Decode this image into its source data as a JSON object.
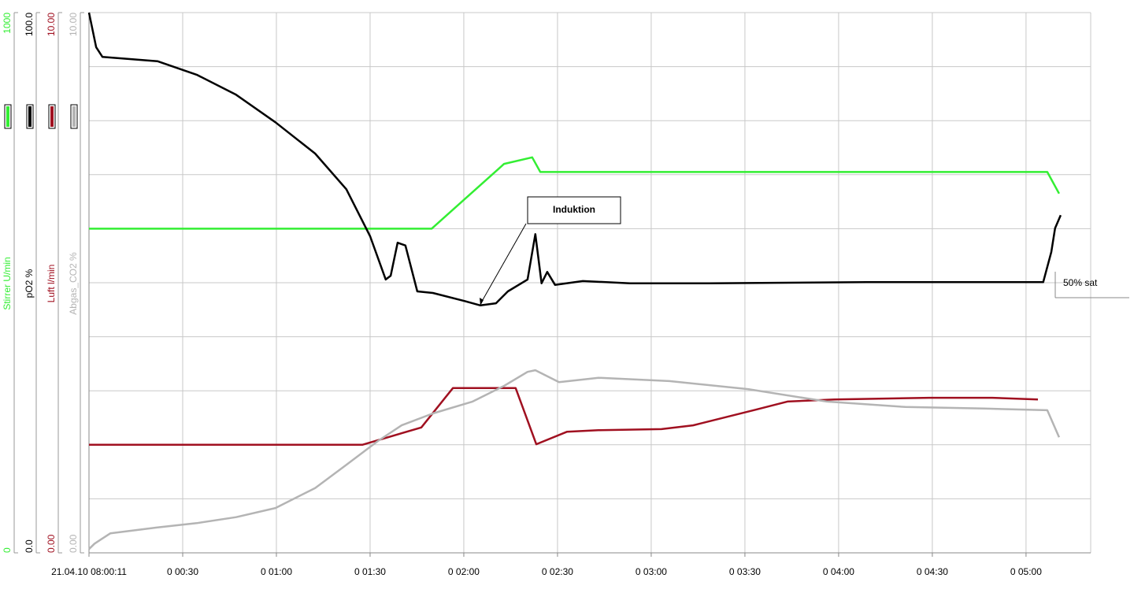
{
  "chart_data": {
    "type": "line",
    "xlim": [
      0,
      320.7
    ],
    "xticks": [
      {
        "value": 0,
        "label": "21.04.10 08:00:11"
      },
      {
        "value": 30,
        "label": "0 00:30"
      },
      {
        "value": 60,
        "label": "0 01:00"
      },
      {
        "value": 90,
        "label": "0 01:30"
      },
      {
        "value": 120,
        "label": "0 02:00"
      },
      {
        "value": 150,
        "label": "0 02:30"
      },
      {
        "value": 180,
        "label": "0 03:00"
      },
      {
        "value": 210,
        "label": "0 03:30"
      },
      {
        "value": 240,
        "label": "0 04:00"
      },
      {
        "value": 270,
        "label": "0 04:30"
      },
      {
        "value": 300,
        "label": "0 05:00"
      }
    ],
    "grid": true,
    "grid_yticks": [
      0,
      100,
      200,
      300,
      400,
      500,
      600,
      700,
      800,
      900,
      1000
    ],
    "series": [
      {
        "name": "Stirrer U/min",
        "color": "#33ee33",
        "ylim": [
          0,
          1000
        ],
        "yticks": [
          0,
          1000
        ],
        "x": [
          0,
          109.7,
          132.9,
          141.9,
          144.5,
          306.8,
          310.6
        ],
        "values": [
          600,
          600,
          720,
          732,
          705,
          705,
          665
        ]
      },
      {
        "name": "pO2 %",
        "color": "#000000",
        "ylim": [
          0,
          100
        ],
        "yticks": [
          {
            "value": 0,
            "label": "0.0"
          },
          {
            "value": 100,
            "label": "100.0"
          }
        ],
        "x": [
          0,
          2.3,
          4.3,
          21.9,
          34.5,
          47.1,
          59.7,
          72.4,
          82.4,
          90.0,
          95.0,
          96.6,
          98.8,
          101.3,
          105.1,
          110.1,
          120.3,
          125.3,
          130.3,
          134.1,
          140.4,
          142.9,
          144.9,
          146.7,
          149.2,
          158.1,
          173.2,
          198.4,
          223.6,
          248.8,
          274.0,
          305.5,
          308.1,
          309.3,
          311.1
        ],
        "values": [
          100,
          93.6,
          91.8,
          91,
          88.5,
          84.8,
          79.7,
          73.9,
          67.3,
          58.6,
          50.6,
          51.3,
          57.4,
          56.9,
          48.4,
          48.1,
          46.6,
          45.8,
          46.2,
          48.4,
          50.6,
          59.0,
          49.9,
          52.0,
          49.6,
          50.3,
          49.9,
          49.9,
          50.0,
          50.1,
          50.1,
          50.1,
          55.7,
          60.1,
          62.5
        ]
      },
      {
        "name": "Luft l/min",
        "color": "#a01020",
        "ylim": [
          0,
          10
        ],
        "yticks": [
          {
            "value": 0,
            "label": "0.00"
          },
          {
            "value": 10,
            "label": "10.00"
          }
        ],
        "x": [
          0,
          87.5,
          106.4,
          116.5,
          136.6,
          143.2,
          153.0,
          163.1,
          183.3,
          193.4,
          213.5,
          223.6,
          238.7,
          269.0,
          289.2,
          303.8
        ],
        "values": [
          2.0,
          2.0,
          2.32,
          3.05,
          3.05,
          2.01,
          2.24,
          2.27,
          2.29,
          2.36,
          2.65,
          2.8,
          2.84,
          2.87,
          2.87,
          2.84
        ]
      },
      {
        "name": "Abgas_CO2 %",
        "color": "#b4b4b4",
        "ylim": [
          0,
          10
        ],
        "yticks": [
          {
            "value": 0,
            "label": "0.00"
          },
          {
            "value": 10,
            "label": "10.00"
          }
        ],
        "x": [
          0,
          1.8,
          6.8,
          21.9,
          34.5,
          47.1,
          59.7,
          72.4,
          82.4,
          92.5,
          100.1,
          110.1,
          122.8,
          132.9,
          140.4,
          142.9,
          150.5,
          163.1,
          185.8,
          211.0,
          236.2,
          261.4,
          286.6,
          306.8,
          310.6
        ],
        "values": [
          0.07,
          0.17,
          0.36,
          0.47,
          0.55,
          0.66,
          0.83,
          1.2,
          1.63,
          2.07,
          2.36,
          2.58,
          2.8,
          3.09,
          3.35,
          3.38,
          3.16,
          3.24,
          3.18,
          3.03,
          2.8,
          2.7,
          2.67,
          2.64,
          2.14
        ]
      }
    ],
    "annotations": [
      {
        "text": "Induktion"
      },
      {
        "text": "50% sat"
      }
    ]
  }
}
